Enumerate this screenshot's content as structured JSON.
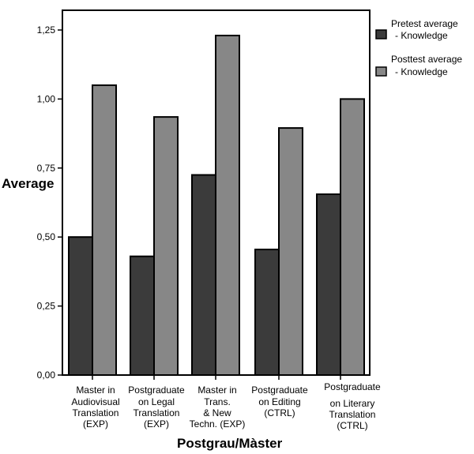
{
  "chart_data": {
    "type": "bar",
    "xlabel": "Postgrau/Màster",
    "ylabel": "Average",
    "ylim": [
      0,
      1.4
    ],
    "yticks": [
      "0,00",
      "0,25",
      "0,50",
      "0,75",
      "1,00",
      "1,25"
    ],
    "ytick_values": [
      0,
      0.25,
      0.5,
      0.75,
      1.0,
      1.25
    ],
    "grid": false,
    "legend_position": "right",
    "categories": [
      [
        "Master in",
        "Audiovisual",
        "Translation",
        "(EXP)"
      ],
      [
        "Postgraduate",
        "on Legal",
        "Translation",
        "(EXP)"
      ],
      [
        "Master in",
        "Trans.",
        "& New",
        "Techn. (EXP)"
      ],
      [
        "Postgraduate",
        "on Editing",
        "(CTRL)"
      ],
      [
        "Postgraduate",
        "on Literary",
        "Translation",
        "(CTRL)"
      ]
    ],
    "series": [
      {
        "name": [
          "Pretest average",
          "- Knowledge"
        ],
        "color": "#3b3b3b",
        "values": [
          0.5,
          0.43,
          0.725,
          0.455,
          0.655
        ]
      },
      {
        "name": [
          "Posttest average",
          "- Knowledge"
        ],
        "color": "#878787",
        "values": [
          1.05,
          0.935,
          1.23,
          0.895,
          1.0
        ]
      }
    ]
  }
}
